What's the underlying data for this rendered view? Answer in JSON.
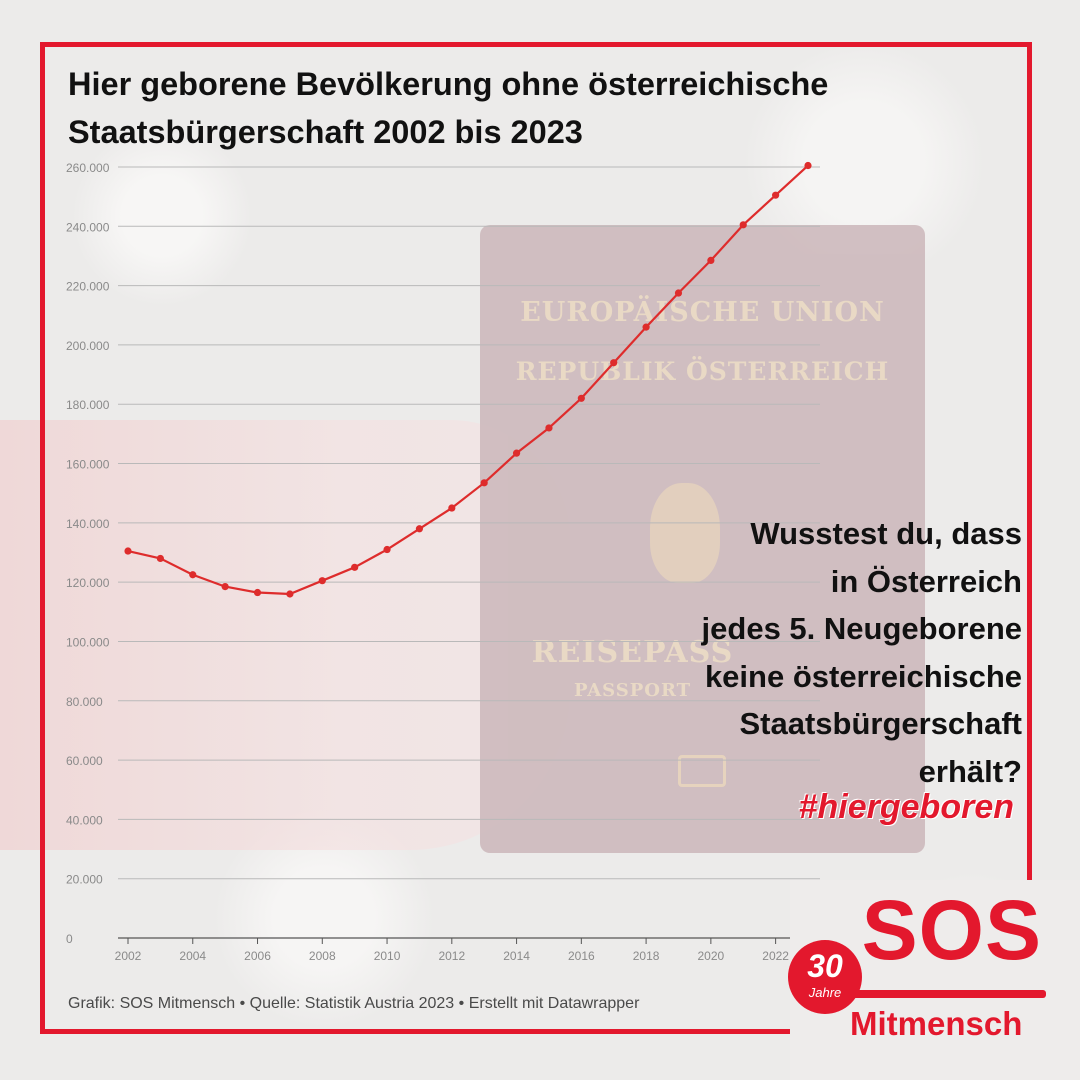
{
  "title_lines": [
    "Hier geborene Bevölkerung ohne österreichische",
    "Staatsbürgerschaft 2002 bis 2023"
  ],
  "callout_lines": [
    "Wusstest du, dass",
    "in Österreich",
    "jedes 5. Neugeborene",
    "keine österreichische",
    "Staatsbürgerschaft",
    "erhält?"
  ],
  "hashtag": "#hiergeboren",
  "source": "Grafik: SOS Mitmensch • Quelle: Statistik Austria 2023 • Erstellt mit Datawrapper",
  "logo": {
    "sos": "SOS",
    "badge_number": "30",
    "badge_label": "Jahre",
    "name": "Mitmensch"
  },
  "passport": {
    "line1": "EUROPÄISCHE UNION",
    "line2": "REPUBLIK ÖSTERREICH",
    "line3": "REISEPASS",
    "line4": "PASSPORT"
  },
  "colors": {
    "accent": "#e3182d",
    "line": "#de2c2c",
    "grid": "#b9b9b9",
    "tick": "#8a8a8a"
  },
  "chart_data": {
    "type": "line",
    "title": "Hier geborene Bevölkerung ohne österreichische Staatsbürgerschaft 2002 bis 2023",
    "xlabel": "",
    "ylabel": "",
    "x": [
      2002,
      2003,
      2004,
      2005,
      2006,
      2007,
      2008,
      2009,
      2010,
      2011,
      2012,
      2013,
      2014,
      2015,
      2016,
      2017,
      2018,
      2019,
      2020,
      2021,
      2022,
      2023
    ],
    "series": [
      {
        "values": [
          130500,
          128000,
          122500,
          118500,
          116500,
          116000,
          120500,
          125000,
          131000,
          138000,
          145000,
          153500,
          163500,
          172000,
          182000,
          194000,
          206000,
          217500,
          228500,
          240500,
          250500,
          260500
        ]
      }
    ],
    "ylim": [
      0,
      260000
    ],
    "y_ticks": [
      0,
      20000,
      40000,
      60000,
      80000,
      100000,
      120000,
      140000,
      160000,
      180000,
      200000,
      220000,
      240000,
      260000
    ],
    "y_tick_labels": [
      "0",
      "20.000",
      "40.000",
      "60.000",
      "80.000",
      "100.000",
      "120.000",
      "140.000",
      "160.000",
      "180.000",
      "200.000",
      "220.000",
      "240.000",
      "260.000"
    ],
    "x_ticks": [
      2002,
      2004,
      2006,
      2008,
      2010,
      2012,
      2014,
      2016,
      2018,
      2020,
      2022
    ],
    "x_tick_labels": [
      "2002",
      "2004",
      "2006",
      "2008",
      "2010",
      "2012",
      "2014",
      "2016",
      "2018",
      "2020",
      "2022"
    ],
    "grid": true
  }
}
